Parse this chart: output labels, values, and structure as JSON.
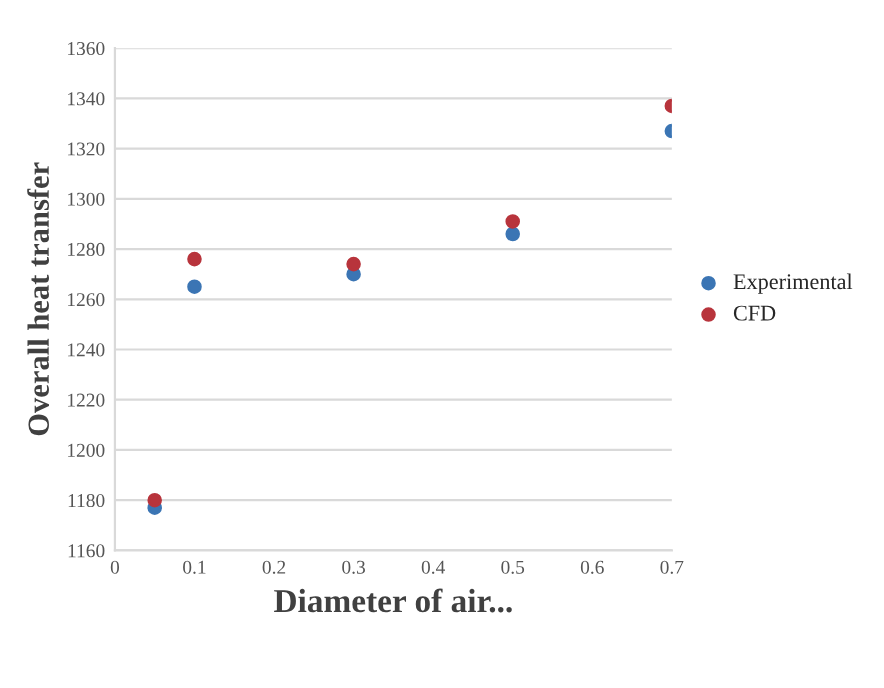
{
  "chart_data": {
    "type": "scatter",
    "xlabel": "Diameter of air...",
    "ylabel": "Overall heat transfer",
    "x": [
      0.05,
      0.1,
      0.3,
      0.5,
      0.7
    ],
    "series": [
      {
        "name": "Experimental",
        "color": "#3b75b4",
        "values": [
          1177,
          1265,
          1270,
          1286,
          1327
        ]
      },
      {
        "name": "CFD",
        "color": "#b8343c",
        "values": [
          1180,
          1276,
          1274,
          1291,
          1337
        ]
      }
    ],
    "xlim": [
      0,
      0.7
    ],
    "xticks": [
      0,
      0.1,
      0.2,
      0.3,
      0.4,
      0.5,
      0.6,
      0.7
    ],
    "ylim": [
      1160,
      1360
    ],
    "yticks": [
      1160,
      1180,
      1200,
      1220,
      1240,
      1260,
      1280,
      1300,
      1320,
      1340,
      1360
    ],
    "grid": "y",
    "legend": "right",
    "marker": "circle"
  }
}
